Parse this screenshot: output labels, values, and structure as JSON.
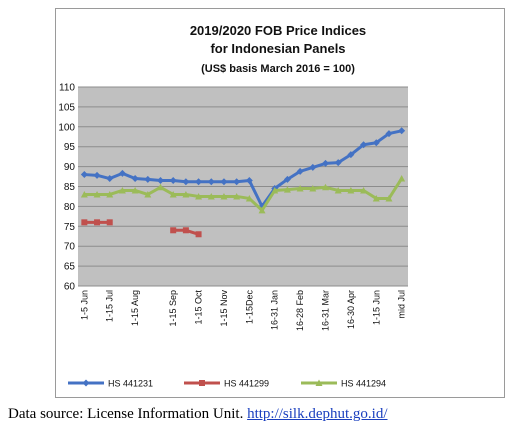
{
  "chart_data": {
    "type": "line",
    "title_lines": [
      "2019/2020 FOB Price Indices",
      "for Indonesian Panels",
      "(US$ basis March 2016 = 100)"
    ],
    "categories": [
      "1-5 Jun",
      "",
      "1-15 Jul",
      "",
      "1-15 Aug",
      "",
      "",
      "1-15 Sep",
      "",
      "1-15 Oct",
      "",
      "1-15 Nov",
      "",
      "1-15Dec",
      "",
      "16-31 Jan",
      "",
      "16-28 Feb",
      "",
      "16-31 Mar",
      "",
      "16-30 Apr",
      "",
      "1-15 Jun",
      "",
      "mid Jul"
    ],
    "ylim": [
      60,
      110
    ],
    "yticks": [
      60,
      65,
      70,
      75,
      80,
      85,
      90,
      95,
      100,
      105,
      110
    ],
    "grid": true,
    "legend_position": "bottom",
    "series": [
      {
        "name": "HS 441231",
        "color": "#4472c4",
        "values": [
          88,
          87.8,
          87,
          88.3,
          87,
          86.8,
          86.5,
          86.5,
          86.2,
          86.2,
          86.2,
          86.2,
          86.2,
          86.5,
          80,
          84.5,
          86.8,
          88.8,
          89.8,
          90.8,
          91,
          93,
          95.5,
          96,
          98.3,
          99
        ]
      },
      {
        "name": "HS 441299",
        "color": "#c0504d",
        "values": [
          76,
          76,
          76,
          null,
          null,
          null,
          null,
          74,
          74,
          73,
          null,
          null,
          null,
          null,
          null,
          null,
          null,
          null,
          null,
          null,
          null,
          null,
          null,
          null,
          null,
          null
        ]
      },
      {
        "name": "HS 441294",
        "color": "#9bbb59",
        "values": [
          83,
          83,
          83,
          84,
          84,
          83,
          84.8,
          83,
          83,
          82.5,
          82.5,
          82.5,
          82.5,
          82,
          79,
          84,
          84.2,
          84.5,
          84.5,
          84.8,
          84,
          84,
          84,
          82,
          82,
          87
        ]
      }
    ]
  },
  "source": {
    "label": "Data source: License Information Unit.",
    "link_text": "http://silk.dephut.go.id/"
  }
}
